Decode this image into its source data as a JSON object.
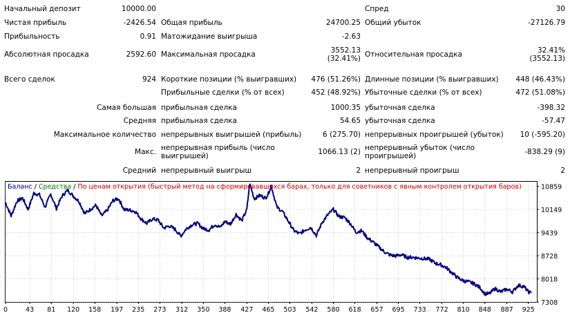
{
  "report": {
    "rows": [
      {
        "cells": [
          {
            "text": "Начальный депозит",
            "x": 6,
            "y": 7,
            "w": 150,
            "a": "l"
          },
          {
            "text": "10000.00",
            "x": 130,
            "y": 7,
            "w": 96,
            "a": "r"
          },
          {
            "text": "Спред",
            "x": 528,
            "y": 7,
            "w": 100,
            "a": "l"
          },
          {
            "text": "30",
            "x": 720,
            "y": 7,
            "w": 98,
            "a": "r"
          }
        ]
      },
      {
        "cells": [
          {
            "text": "Чистая прибыль",
            "x": 6,
            "y": 27,
            "w": 150,
            "a": "l"
          },
          {
            "text": "-2426.54",
            "x": 130,
            "y": 27,
            "w": 96,
            "a": "r"
          },
          {
            "text": "Общая прибыль",
            "x": 233,
            "y": 27,
            "w": 150,
            "a": "l"
          },
          {
            "text": "24700.25",
            "x": 420,
            "y": 27,
            "w": 102,
            "a": "r"
          },
          {
            "text": "Общий убыток",
            "x": 528,
            "y": 27,
            "w": 150,
            "a": "l"
          },
          {
            "text": "-27126.79",
            "x": 720,
            "y": 27,
            "w": 98,
            "a": "r"
          }
        ]
      },
      {
        "cells": [
          {
            "text": "Прибыльность",
            "x": 6,
            "y": 47,
            "w": 150,
            "a": "l"
          },
          {
            "text": "0.91",
            "x": 130,
            "y": 47,
            "w": 96,
            "a": "r"
          },
          {
            "text": "Матожидание выигрыша",
            "x": 233,
            "y": 47,
            "w": 180,
            "a": "l"
          },
          {
            "text": "-2.63",
            "x": 420,
            "y": 47,
            "w": 102,
            "a": "r"
          }
        ]
      },
      {
        "cells": [
          {
            "text": "Абсолютная просадка",
            "x": 6,
            "y": 73,
            "w": 150,
            "a": "l"
          },
          {
            "text": "2592.60",
            "x": 130,
            "y": 73,
            "w": 96,
            "a": "r"
          },
          {
            "text": "Максимальная просадка",
            "x": 233,
            "y": 73,
            "w": 180,
            "a": "l"
          },
          {
            "text": "3552.13",
            "x": 420,
            "y": 67,
            "w": 102,
            "a": "r"
          },
          {
            "text": "(32.41%)",
            "x": 420,
            "y": 79,
            "w": 102,
            "a": "r"
          },
          {
            "text": "Относительная просадка",
            "x": 528,
            "y": 73,
            "w": 180,
            "a": "l"
          },
          {
            "text": "32.41%",
            "x": 720,
            "y": 67,
            "w": 98,
            "a": "r"
          },
          {
            "text": "(3552.13)",
            "x": 720,
            "y": 79,
            "w": 98,
            "a": "r"
          }
        ]
      },
      {
        "cells": [
          {
            "text": "Всего сделок",
            "x": 6,
            "y": 109,
            "w": 150,
            "a": "l"
          },
          {
            "text": "924",
            "x": 130,
            "y": 109,
            "w": 96,
            "a": "r"
          },
          {
            "text": "Короткие позиции (% выигравших)",
            "x": 233,
            "y": 109,
            "w": 200,
            "a": "l"
          },
          {
            "text": "476 (51.26%)",
            "x": 420,
            "y": 109,
            "w": 102,
            "a": "r"
          },
          {
            "text": "Длинные позиции (% выигравших)",
            "x": 528,
            "y": 109,
            "w": 200,
            "a": "l"
          },
          {
            "text": "448 (46.43%)",
            "x": 720,
            "y": 109,
            "w": 98,
            "a": "r"
          }
        ]
      },
      {
        "cells": [
          {
            "text": "Прибыльные сделки (% от всех)",
            "x": 233,
            "y": 128,
            "w": 200,
            "a": "l"
          },
          {
            "text": "452 (48.92%)",
            "x": 420,
            "y": 128,
            "w": 102,
            "a": "r"
          },
          {
            "text": "Убыточные сделки (% от всех)",
            "x": 528,
            "y": 128,
            "w": 200,
            "a": "l"
          },
          {
            "text": "472 (51.08%)",
            "x": 720,
            "y": 128,
            "w": 98,
            "a": "r"
          }
        ]
      },
      {
        "cells": [
          {
            "text": "Самая большая",
            "x": 20,
            "y": 150,
            "w": 206,
            "a": "r"
          },
          {
            "text": "прибыльная сделка",
            "x": 233,
            "y": 150,
            "w": 180,
            "a": "l"
          },
          {
            "text": "1000.35",
            "x": 420,
            "y": 150,
            "w": 102,
            "a": "r"
          },
          {
            "text": "убыточная сделка",
            "x": 528,
            "y": 150,
            "w": 180,
            "a": "l"
          },
          {
            "text": "-398.32",
            "x": 720,
            "y": 150,
            "w": 98,
            "a": "r"
          }
        ]
      },
      {
        "cells": [
          {
            "text": "Средняя",
            "x": 20,
            "y": 169,
            "w": 206,
            "a": "r"
          },
          {
            "text": "прибыльная сделка",
            "x": 233,
            "y": 169,
            "w": 180,
            "a": "l"
          },
          {
            "text": "54.65",
            "x": 420,
            "y": 169,
            "w": 102,
            "a": "r"
          },
          {
            "text": "убыточная сделка",
            "x": 528,
            "y": 169,
            "w": 180,
            "a": "l"
          },
          {
            "text": "-57.47",
            "x": 720,
            "y": 169,
            "w": 98,
            "a": "r"
          }
        ]
      },
      {
        "cells": [
          {
            "text": "Максимальное количество",
            "x": 20,
            "y": 189,
            "w": 206,
            "a": "r"
          },
          {
            "text": "непрерывных выигрышей (прибыль)",
            "x": 233,
            "y": 189,
            "w": 200,
            "a": "l"
          },
          {
            "text": "6 (275.70)",
            "x": 420,
            "y": 189,
            "w": 102,
            "a": "r"
          },
          {
            "text": "непрерывных проигрышей (убыток)",
            "x": 528,
            "y": 189,
            "w": 200,
            "a": "l"
          },
          {
            "text": "10 (-595.20)",
            "x": 720,
            "y": 189,
            "w": 98,
            "a": "r"
          }
        ]
      },
      {
        "cells": [
          {
            "text": "Макс.",
            "x": 20,
            "y": 214,
            "w": 206,
            "a": "r"
          },
          {
            "text": "непрерывная прибыль (число выигрышей)",
            "x": 233,
            "y": 208,
            "w": 180,
            "a": "w"
          },
          {
            "text": "1066.13 (2)",
            "x": 420,
            "y": 214,
            "w": 102,
            "a": "r"
          },
          {
            "text": "непрерывный убыток (число проигрышей)",
            "x": 528,
            "y": 208,
            "w": 180,
            "a": "w"
          },
          {
            "text": "-838.29 (9)",
            "x": 720,
            "y": 214,
            "w": 98,
            "a": "r"
          }
        ]
      },
      {
        "cells": [
          {
            "text": "Средний",
            "x": 20,
            "y": 241,
            "w": 206,
            "a": "r"
          },
          {
            "text": "непрерывный выигрыш",
            "x": 233,
            "y": 241,
            "w": 180,
            "a": "l"
          },
          {
            "text": "2",
            "x": 420,
            "y": 241,
            "w": 102,
            "a": "r"
          },
          {
            "text": "непрерывный проигрыш",
            "x": 528,
            "y": 241,
            "w": 180,
            "a": "l"
          },
          {
            "text": "2",
            "x": 720,
            "y": 241,
            "w": 98,
            "a": "r"
          }
        ]
      }
    ]
  },
  "legend": {
    "balance": "Баланс",
    "sep1": " / ",
    "equity": "Средства",
    "sep2": " / ",
    "mode": "По ценам открытия (быстрый метод на сформировавшихся барах, только для советников с явным контролем открытия баров)"
  },
  "colors": {
    "balance": "#000080",
    "equity": "#008000",
    "mode": "#cc0000",
    "grid": "#c8c8c8",
    "frame": "#000000"
  },
  "chart_data": {
    "type": "line",
    "xlabel": "",
    "ylabel": "",
    "x_ticks": [
      0,
      43,
      81,
      120,
      158,
      197,
      235,
      273,
      312,
      350,
      388,
      427,
      465,
      503,
      542,
      580,
      618,
      657,
      695,
      733,
      772,
      810,
      848,
      887,
      925
    ],
    "y_ticks": [
      "10859",
      "10149",
      "9439",
      "8728",
      "8018",
      "7308"
    ],
    "ylim": [
      7308,
      11000
    ],
    "xlim": [
      0,
      940
    ],
    "grid": true,
    "series": [
      {
        "name": "Баланс",
        "x": [
          0,
          10,
          20,
          30,
          40,
          50,
          60,
          70,
          80,
          90,
          100,
          110,
          120,
          130,
          140,
          150,
          160,
          170,
          180,
          190,
          200,
          210,
          220,
          230,
          240,
          250,
          260,
          270,
          280,
          290,
          300,
          310,
          320,
          330,
          340,
          350,
          360,
          370,
          380,
          388,
          398,
          408,
          418,
          427,
          432,
          440,
          450,
          460,
          465,
          470,
          480,
          490,
          500,
          510,
          520,
          530,
          540,
          550,
          560,
          570,
          580,
          590,
          600,
          610,
          620,
          630,
          640,
          650,
          660,
          670,
          680,
          690,
          700,
          710,
          720,
          730,
          740,
          750,
          760,
          770,
          780,
          790,
          800,
          810,
          820,
          830,
          840,
          848,
          856,
          866,
          876,
          887,
          897,
          907,
          917,
          925,
          930
        ],
        "values": [
          10360,
          9950,
          10400,
          10500,
          10150,
          10650,
          10600,
          10220,
          10620,
          10180,
          10560,
          10740,
          10560,
          10400,
          10020,
          10150,
          10280,
          9950,
          10120,
          10420,
          10480,
          10140,
          10130,
          10080,
          9860,
          9720,
          9860,
          9820,
          9580,
          9640,
          9540,
          9330,
          9560,
          9680,
          9720,
          9560,
          9520,
          9690,
          9600,
          9780,
          9700,
          10000,
          9800,
          10150,
          10950,
          10480,
          10580,
          10500,
          10640,
          10880,
          10220,
          10080,
          9800,
          9500,
          9400,
          9520,
          9600,
          9350,
          9750,
          9980,
          10150,
          9930,
          9900,
          9720,
          9450,
          9500,
          9280,
          9150,
          9000,
          8850,
          8750,
          8720,
          8760,
          8680,
          8680,
          8660,
          8640,
          8620,
          8500,
          8450,
          8360,
          8200,
          8050,
          7960,
          7920,
          7860,
          7740,
          7560,
          7560,
          7720,
          7620,
          7700,
          7620,
          7820,
          7780,
          7620,
          7580
        ]
      }
    ]
  }
}
